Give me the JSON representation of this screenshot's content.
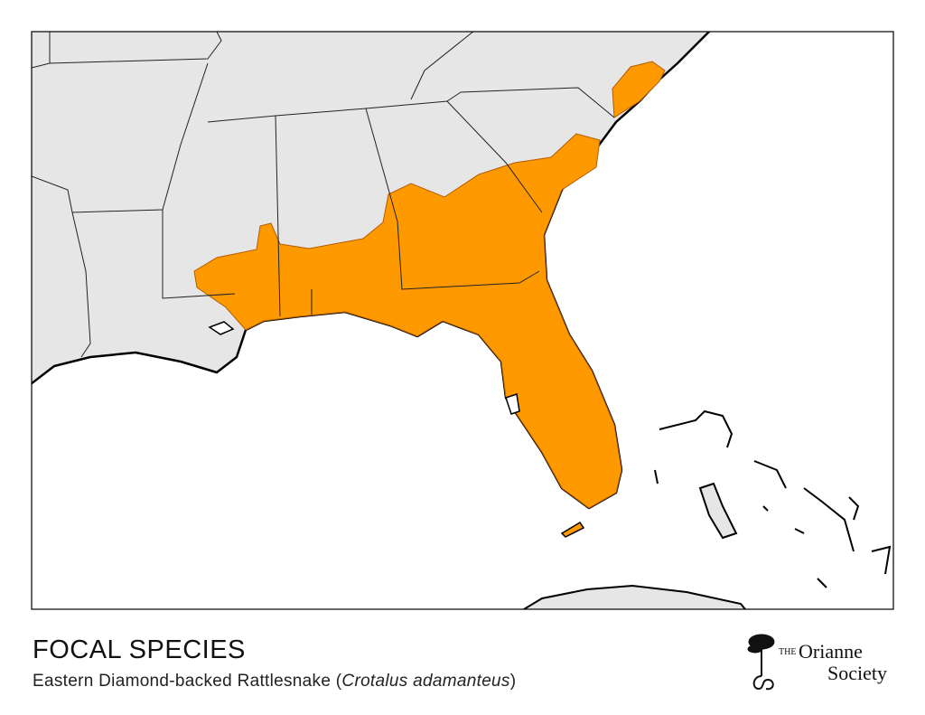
{
  "title": "FOCAL SPECIES",
  "subtitle": {
    "common": "Eastern Diamond-backed Rattlesnake (",
    "scientific": "Crotalus adamanteus",
    "close": ")"
  },
  "logo": {
    "the": "THE",
    "name1": "Orianne",
    "name2": "Society"
  }
}
